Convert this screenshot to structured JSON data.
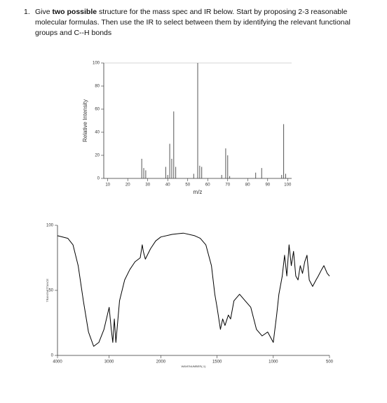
{
  "question": {
    "number": "1.",
    "text_runs": [
      "Give ",
      "two possible",
      " structure for the mass spec and IR below.  Start by proposing 2-3 reasonable molecular formulas.  Then use the IR to select between them by identifying the relevant functional groups and C--H bonds"
    ]
  },
  "chart_data": [
    {
      "type": "bar",
      "xlabel": "m/z",
      "ylabel": "Relative Intensity",
      "color": "#555555",
      "x": [
        27,
        28,
        29,
        39,
        40,
        41,
        42,
        43,
        44,
        53,
        55,
        56,
        57,
        67,
        69,
        70,
        71,
        84,
        87,
        97,
        98,
        99
      ],
      "values": [
        17,
        9,
        7,
        10,
        3,
        30,
        17,
        58,
        10,
        4,
        100,
        11,
        10,
        3,
        26,
        20,
        2,
        5,
        9,
        3,
        47,
        4
      ],
      "xlim": [
        8,
        102
      ],
      "xticks": [
        10,
        20,
        30,
        40,
        50,
        60,
        70,
        80,
        90,
        100
      ],
      "ylim": [
        0,
        100
      ],
      "yticks": [
        0,
        20,
        40,
        60,
        80,
        100
      ]
    },
    {
      "type": "line",
      "xlabel": "WAVENUMBER(-1)",
      "ylabel": "TRANSMITTANCE",
      "color": "#000000",
      "xscale_break": 2000,
      "x": [
        4000,
        3800,
        3700,
        3600,
        3500,
        3400,
        3300,
        3200,
        3100,
        3000,
        2960,
        2930,
        2900,
        2870,
        2800,
        2700,
        2600,
        2500,
        2400,
        2360,
        2340,
        2300,
        2200,
        2100,
        2000,
        1900,
        1800,
        1700,
        1650,
        1600,
        1550,
        1520,
        1500,
        1470,
        1450,
        1430,
        1400,
        1380,
        1350,
        1300,
        1250,
        1200,
        1150,
        1100,
        1050,
        1000,
        970,
        950,
        920,
        900,
        880,
        860,
        840,
        820,
        800,
        780,
        760,
        740,
        720,
        700,
        680,
        650,
        620,
        600,
        570,
        550,
        520,
        500
      ],
      "values": [
        92,
        90,
        85,
        69,
        42,
        18,
        7,
        10,
        20,
        37,
        20,
        10,
        28,
        10,
        42,
        58,
        66,
        72,
        75,
        85,
        80,
        74,
        82,
        88,
        91,
        93,
        94,
        92,
        90,
        85,
        69,
        47,
        37,
        20,
        28,
        23,
        31,
        28,
        42,
        47,
        42,
        37,
        20,
        15,
        18,
        10,
        31,
        47,
        61,
        77,
        61,
        85,
        69,
        80,
        61,
        58,
        69,
        63,
        72,
        77,
        58,
        53,
        58,
        61,
        66,
        69,
        63,
        61
      ],
      "xlim": [
        4000,
        500
      ],
      "xticks": [
        4000,
        3000,
        2000,
        1500,
        1000,
        500
      ],
      "ylim": [
        0,
        100
      ],
      "yticks": [
        0,
        50,
        100
      ]
    }
  ]
}
